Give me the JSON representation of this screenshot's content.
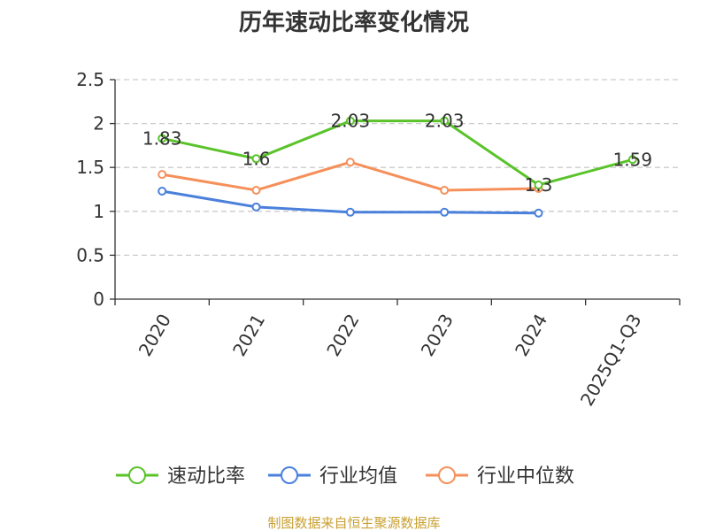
{
  "chart_data": {
    "type": "line",
    "title": "历年速动比率变化情况",
    "categories": [
      "2020",
      "2021",
      "2022",
      "2023",
      "2024",
      "2025Q1-Q3"
    ],
    "ylim": [
      0,
      2.5
    ],
    "yticks": [
      "0",
      "0.5",
      "1",
      "1.5",
      "2",
      "2.5"
    ],
    "grid": true,
    "legend_position": "bottom",
    "series": [
      {
        "name": "速动比率",
        "color": "#5ac32a",
        "values": [
          1.83,
          1.6,
          2.03,
          2.03,
          1.3,
          1.59
        ],
        "labels": [
          "1.83",
          "1.6",
          "2.03",
          "2.03",
          "1.3",
          "1.59"
        ]
      },
      {
        "name": "行业均值",
        "color": "#4a80dc",
        "values": [
          1.23,
          1.05,
          0.99,
          0.99,
          0.98,
          null
        ]
      },
      {
        "name": "行业中位数",
        "color": "#f5905a",
        "values": [
          1.42,
          1.24,
          1.56,
          1.24,
          1.26,
          null
        ]
      }
    ]
  },
  "source": "制图数据来自恒生聚源数据库"
}
